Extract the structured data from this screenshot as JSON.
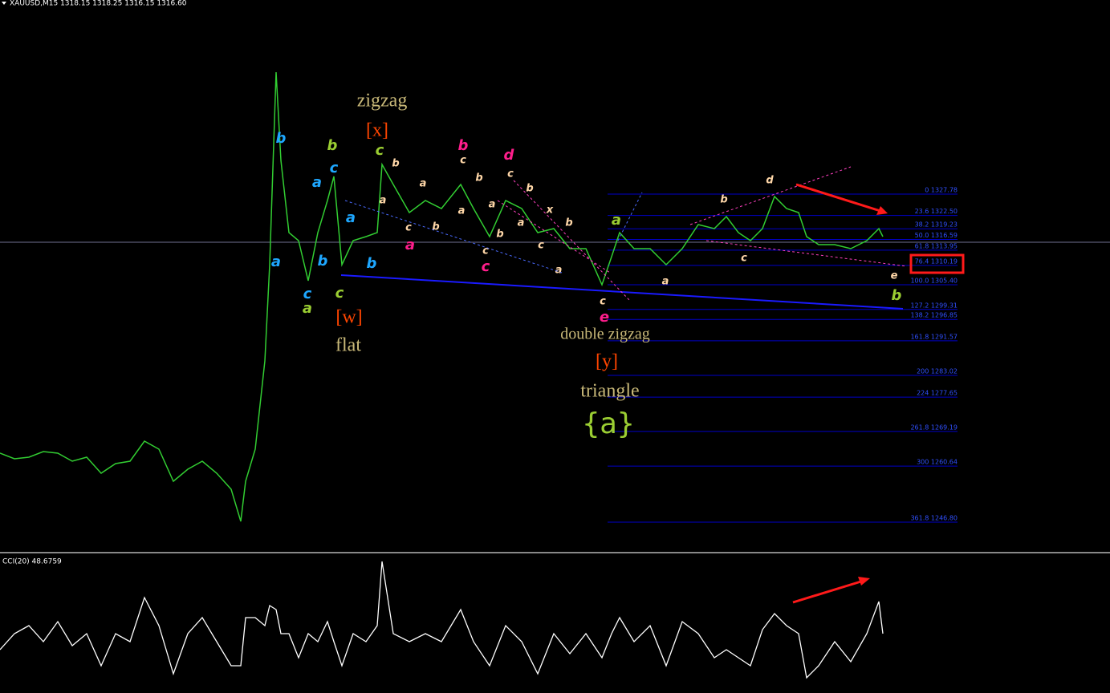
{
  "chart_data": [
    {
      "type": "line",
      "title": "XAUUSD,M15 1318.15 1318.25 1316.15 1316.60",
      "color": "#32cd32",
      "x": [
        0,
        18,
        36,
        54,
        72,
        90,
        108,
        126,
        144,
        162,
        180,
        198,
        216,
        234,
        252,
        270,
        288,
        300,
        306,
        318,
        330,
        336,
        344,
        350,
        360,
        372,
        384,
        396,
        408,
        416,
        426,
        440,
        456,
        470,
        476,
        490,
        510,
        530,
        550,
        574,
        590,
        610,
        630,
        650,
        670,
        690,
        710,
        730,
        750,
        762,
        772,
        790,
        810,
        830,
        850,
        870,
        890,
        905,
        920,
        935,
        950,
        965,
        980,
        995,
        1005,
        1020,
        1040,
        1060,
        1080,
        1095,
        1100
      ],
      "values": [
        1263.83,
        1262.44,
        1262.84,
        1264.22,
        1263.83,
        1261.85,
        1262.84,
        1258.88,
        1261.25,
        1261.85,
        1266.8,
        1264.82,
        1256.9,
        1259.87,
        1261.85,
        1258.88,
        1254.92,
        1247.0,
        1256.9,
        1264.82,
        1286.6,
        1310.36,
        1357.88,
        1336.1,
        1318.28,
        1316.3,
        1306.4,
        1318.28,
        1326.2,
        1332.14,
        1310.36,
        1316.3,
        1317.29,
        1318.28,
        1335.11,
        1330.16,
        1323.23,
        1326.2,
        1324.22,
        1330.16,
        1324.22,
        1317.29,
        1326.2,
        1324.22,
        1318.28,
        1319.27,
        1314.32,
        1314.32,
        1305.41,
        1312.34,
        1318.28,
        1314.32,
        1314.32,
        1310.36,
        1314.32,
        1320.26,
        1319.27,
        1322.24,
        1318.28,
        1316.3,
        1319.27,
        1327.19,
        1324.22,
        1323.23,
        1317.29,
        1315.31,
        1315.31,
        1314.32,
        1316.3,
        1319.27,
        1317.29
      ],
      "xlim": [
        0,
        1383
      ],
      "ylim": [
        1239.47,
        1375.7
      ],
      "fib_levels": [
        {
          "value": 1327.78,
          "label": "0 1327.78"
        },
        {
          "value": 1322.5,
          "label": "23.6 1322.50"
        },
        {
          "value": 1319.23,
          "label": "38.2 1319.23"
        },
        {
          "value": 1316.59,
          "label": "50.0 1316.59"
        },
        {
          "value": 1313.95,
          "label": "61.8 1313.95"
        },
        {
          "value": 1310.19,
          "label": "76.4 1310.19"
        },
        {
          "value": 1305.4,
          "label": "100.0 1305.40"
        },
        {
          "value": 1299.31,
          "label": "127.2 1299.31"
        },
        {
          "value": 1296.85,
          "label": "138.2 1296.85"
        },
        {
          "value": 1291.57,
          "label": "161.8 1291.57"
        },
        {
          "value": 1283.02,
          "label": "200 1283.02"
        },
        {
          "value": 1277.65,
          "label": "224 1277.65"
        },
        {
          "value": 1269.19,
          "label": "261.8 1269.19"
        },
        {
          "value": 1260.64,
          "label": "300 1260.64"
        },
        {
          "value": 1246.8,
          "label": "361.8 1246.80"
        }
      ]
    },
    {
      "type": "line",
      "title": "CCI(20) 48.6759",
      "color": "#ffffff",
      "x": [
        0,
        18,
        36,
        54,
        72,
        90,
        108,
        126,
        144,
        162,
        180,
        198,
        216,
        234,
        252,
        270,
        288,
        300,
        306,
        318,
        330,
        336,
        344,
        350,
        360,
        372,
        384,
        396,
        408,
        416,
        426,
        440,
        456,
        470,
        476,
        490,
        510,
        530,
        550,
        574,
        590,
        610,
        630,
        650,
        670,
        690,
        710,
        730,
        750,
        762,
        772,
        790,
        810,
        830,
        850,
        870,
        890,
        905,
        920,
        935,
        950,
        965,
        980,
        995,
        1005,
        1020,
        1040,
        1060,
        1080,
        1095,
        1100
      ],
      "values": [
        -60,
        0,
        30,
        -30,
        45,
        -45,
        0,
        -120,
        0,
        -30,
        135,
        30,
        -150,
        0,
        60,
        -30,
        -120,
        -120,
        60,
        60,
        30,
        105,
        90,
        0,
        0,
        -90,
        0,
        -30,
        45,
        -30,
        -120,
        0,
        -30,
        30,
        270,
        0,
        -30,
        0,
        -30,
        90,
        -30,
        -120,
        30,
        -30,
        -150,
        0,
        -75,
        0,
        -90,
        0,
        60,
        -30,
        30,
        -120,
        45,
        0,
        -90,
        -60,
        -90,
        -120,
        15,
        75,
        30,
        0,
        -165,
        -120,
        -30,
        -105,
        0,
        120,
        0
      ],
      "xlim": [
        0,
        1383
      ],
      "ylim": [
        -210,
        270
      ]
    }
  ],
  "annotations": [
    {
      "text": "b",
      "color": "#1ea7ff"
    },
    {
      "text": "a",
      "color": "#1ea7ff"
    },
    {
      "text": "c",
      "color": "#1ea7ff"
    },
    {
      "text": "a",
      "color": "#9acd32"
    },
    {
      "text": "a",
      "color": "#1ea7ff"
    },
    {
      "text": "b",
      "color": "#9acd32"
    },
    {
      "text": "c",
      "color": "#1ea7ff"
    },
    {
      "text": "b",
      "color": "#1ea7ff"
    },
    {
      "text": "c",
      "color": "#9acd32"
    },
    {
      "text": "a",
      "color": "#1ea7ff"
    },
    {
      "text": "b",
      "color": "#1ea7ff"
    },
    {
      "text": "zigzag",
      "color": "#c8b878"
    },
    {
      "text": "[x]",
      "color": "#ff4500"
    },
    {
      "text": "c",
      "color": "#9acd32"
    },
    {
      "text": "b",
      "color": "#ffd7a8"
    },
    {
      "text": "a",
      "color": "#ffd7a8"
    },
    {
      "text": "a",
      "color": "#ffd7a8"
    },
    {
      "text": "c",
      "color": "#ffd7a8"
    },
    {
      "text": "a",
      "color": "#ff1e8c"
    },
    {
      "text": "b",
      "color": "#ffd7a8"
    },
    {
      "text": "a",
      "color": "#ffd7a8"
    },
    {
      "text": "b",
      "color": "#ff1e8c"
    },
    {
      "text": "c",
      "color": "#ffd7a8"
    },
    {
      "text": "b",
      "color": "#ffd7a8"
    },
    {
      "text": "a",
      "color": "#ffd7a8"
    },
    {
      "text": "b",
      "color": "#ffd7a8"
    },
    {
      "text": "c",
      "color": "#ffd7a8"
    },
    {
      "text": "c",
      "color": "#ff1e8c"
    },
    {
      "text": "d",
      "color": "#ff1e8c"
    },
    {
      "text": "c",
      "color": "#ffd7a8"
    },
    {
      "text": "b",
      "color": "#ffd7a8"
    },
    {
      "text": "a",
      "color": "#ffd7a8"
    },
    {
      "text": "x",
      "color": "#ffd7a8"
    },
    {
      "text": "c",
      "color": "#ffd7a8"
    },
    {
      "text": "b",
      "color": "#ffd7a8"
    },
    {
      "text": "a",
      "color": "#ffd7a8"
    },
    {
      "text": "c",
      "color": "#ffd7a8"
    },
    {
      "text": "e",
      "color": "#ff1e8c"
    },
    {
      "text": "a",
      "color": "#9acd32"
    },
    {
      "text": "a",
      "color": "#ffd7a8"
    },
    {
      "text": "b",
      "color": "#ffd7a8"
    },
    {
      "text": "c",
      "color": "#ffd7a8"
    },
    {
      "text": "d",
      "color": "#ffd7a8"
    },
    {
      "text": "e",
      "color": "#ffd7a8"
    },
    {
      "text": "b",
      "color": "#9acd32"
    },
    {
      "text": "[w]",
      "color": "#ff4500"
    },
    {
      "text": "flat",
      "color": "#c8b878"
    },
    {
      "text": "double zigzag",
      "color": "#c8b878"
    },
    {
      "text": "[y]",
      "color": "#ff4500"
    },
    {
      "text": "triangle",
      "color": "#c8b878"
    },
    {
      "text": "{a}",
      "color": "#9acd32"
    }
  ]
}
